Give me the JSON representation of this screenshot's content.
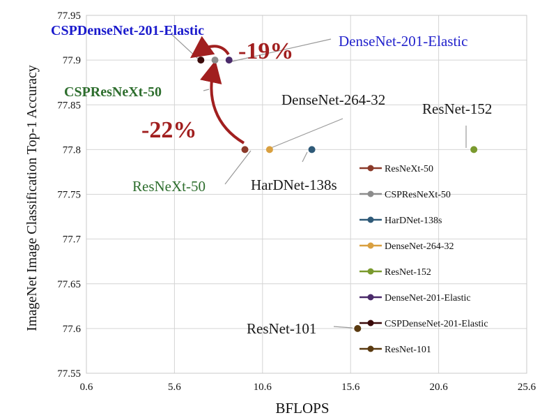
{
  "chart_data": {
    "type": "scatter",
    "title": "",
    "xlabel": "BFLOPS",
    "ylabel": "ImageNet Image Classification Top-1 Accuracy",
    "xlim": [
      0.6,
      25.6
    ],
    "ylim": [
      77.55,
      77.95
    ],
    "x_ticks": [
      "0.6",
      "5.6",
      "10.6",
      "15.6",
      "20.6",
      "25.6"
    ],
    "y_ticks": [
      "77.55",
      "77.6",
      "77.65",
      "77.7",
      "77.75",
      "77.8",
      "77.85",
      "77.9",
      "77.95"
    ],
    "grid": true,
    "legend_position": "right",
    "series": [
      {
        "name": "ResNeXt-50",
        "color": "#8b3a2a",
        "x": 9.6,
        "y": 77.8
      },
      {
        "name": "CSPResNeXt-50",
        "color": "#8c8c8c",
        "x": 7.9,
        "y": 77.9
      },
      {
        "name": "HarDNet-138s",
        "color": "#2f5a78",
        "x": 13.4,
        "y": 77.8
      },
      {
        "name": "DenseNet-264-32",
        "color": "#d9a040",
        "x": 11.0,
        "y": 77.8
      },
      {
        "name": "ResNet-152",
        "color": "#7a9a2e",
        "x": 22.6,
        "y": 77.8
      },
      {
        "name": "DenseNet-201-Elastic",
        "color": "#4a2a6a",
        "x": 8.7,
        "y": 77.9
      },
      {
        "name": "CSPDenseNet-201-Elastic",
        "color": "#3a0a0a",
        "x": 7.1,
        "y": 77.9
      },
      {
        "name": "ResNet-101",
        "color": "#5a3a10",
        "x": 16.0,
        "y": 77.6
      }
    ],
    "annotations": [
      {
        "text": "CSPDenseNet-201-Elastic",
        "color": "#1a1acc"
      },
      {
        "text": "DenseNet-201-Elastic",
        "color": "#2222cc"
      },
      {
        "text": "CSPResNeXt-50",
        "color": "#2e6e2e"
      },
      {
        "text": "DenseNet-264-32",
        "color": "#1a1a1a"
      },
      {
        "text": "ResNet-152",
        "color": "#1a1a1a"
      },
      {
        "text": "ResNeXt-50",
        "color": "#2e6e2e"
      },
      {
        "text": "HarDNet-138s",
        "color": "#1a1a1a"
      },
      {
        "text": "ResNet-101",
        "color": "#1a1a1a"
      },
      {
        "text": "-19%",
        "color": "#a11f1f"
      },
      {
        "text": "-22%",
        "color": "#a11f1f"
      }
    ]
  }
}
